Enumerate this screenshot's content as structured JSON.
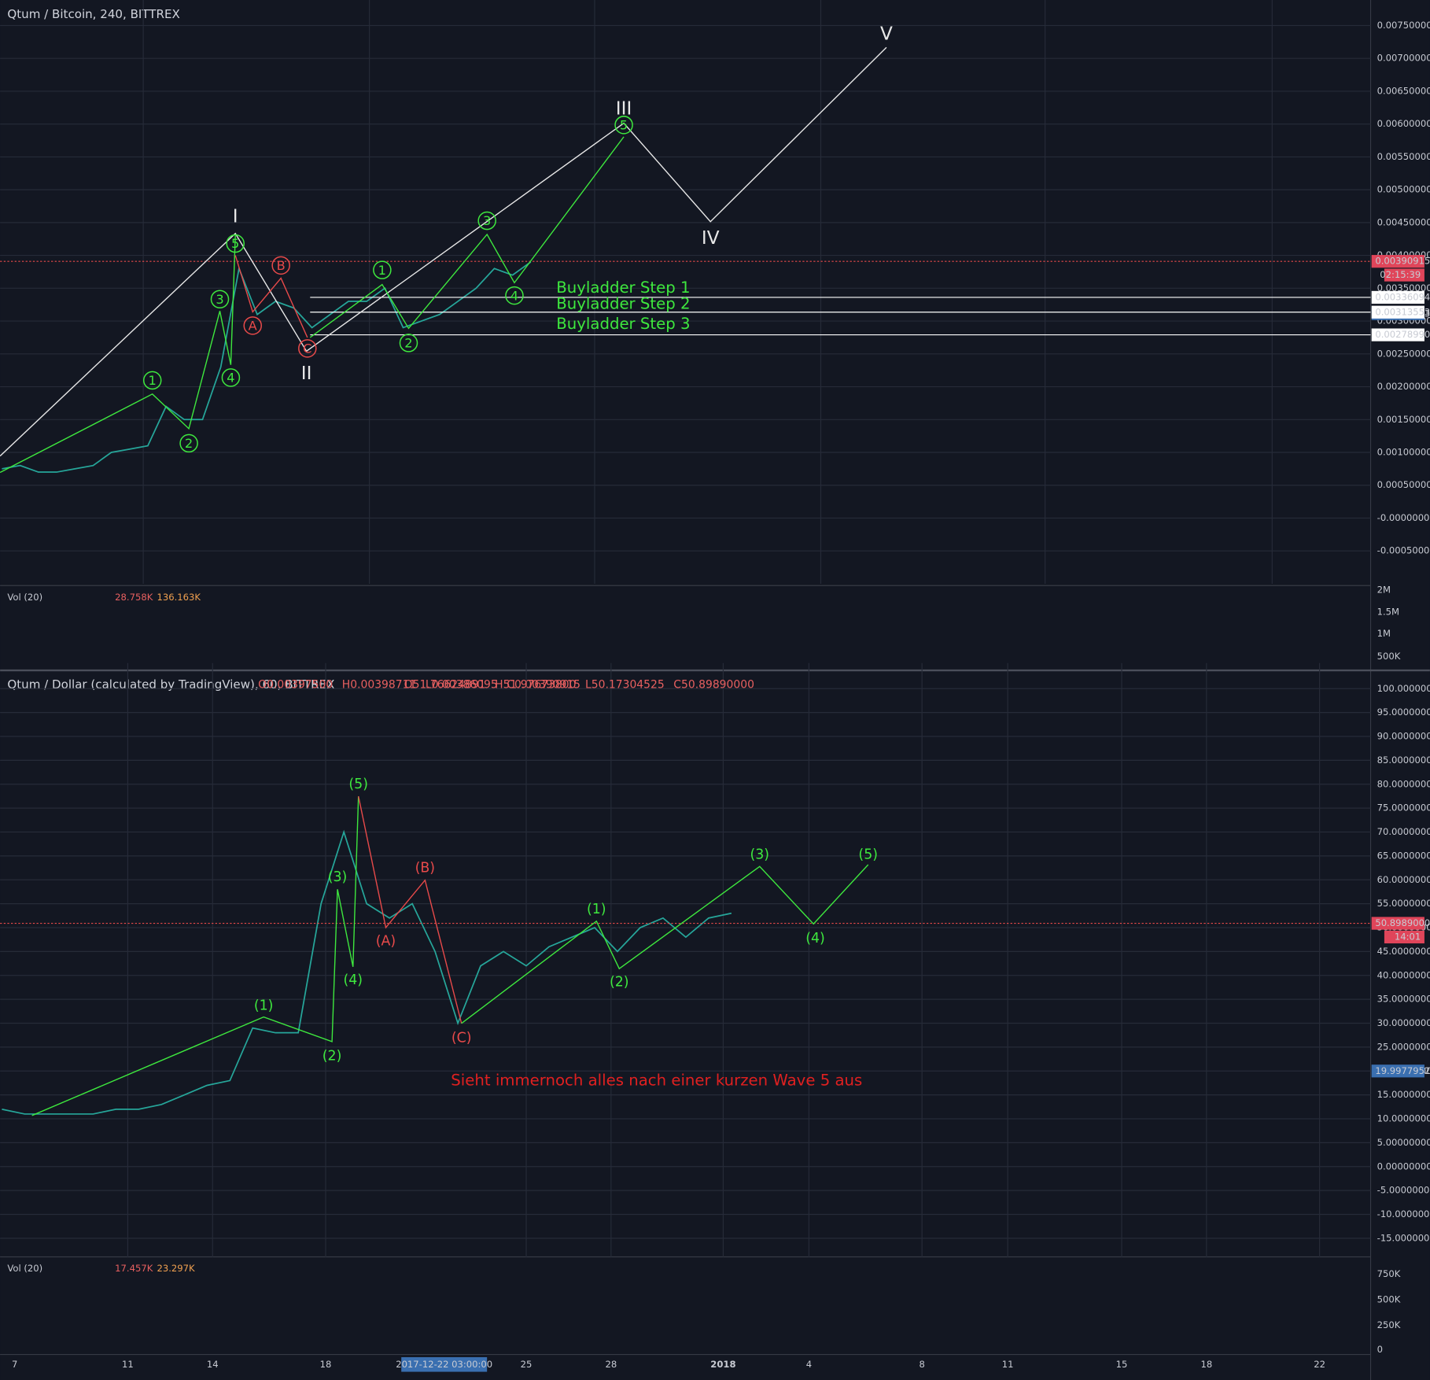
{
  "top": {
    "title": "Qtum / Bitcoin, 240, BITTREX",
    "ohlc": [
      "O0.00397500",
      "H0.00398711",
      "L0.00386095",
      "C0.00390915"
    ],
    "ylim": [
      -0.001,
      0.0075
    ],
    "yticks": [
      {
        "value": -0.0005,
        "label": "-0.00050000"
      },
      {
        "value": 0,
        "label": "-0.00000000"
      },
      {
        "value": 0.0005,
        "label": "0.00050000"
      },
      {
        "value": 0.001,
        "label": "0.00100000"
      },
      {
        "value": 0.0015,
        "label": "0.00150000"
      },
      {
        "value": 0.002,
        "label": "0.00200000"
      },
      {
        "value": 0.0025,
        "label": "0.00250000"
      },
      {
        "value": 0.003,
        "label": "0.00300000"
      },
      {
        "value": 0.0035,
        "label": "0.00350000"
      },
      {
        "value": 0.004,
        "label": "0.00400000"
      },
      {
        "value": 0.0045,
        "label": "0.00450000"
      },
      {
        "value": 0.005,
        "label": "0.00500000"
      },
      {
        "value": 0.0055,
        "label": "0.00550000"
      },
      {
        "value": 0.006,
        "label": "0.00600000"
      },
      {
        "value": 0.0065,
        "label": "0.00650000"
      },
      {
        "value": 0.007,
        "label": "0.00700000"
      },
      {
        "value": 0.0075,
        "label": "0.00750000"
      }
    ],
    "price": [
      0.00075,
      0.0008,
      0.0007,
      0.0007,
      0.00075,
      0.0008,
      0.001,
      0.00105,
      0.0011,
      0.0017,
      0.0015,
      0.0015,
      0.0023,
      0.0038,
      0.0031,
      0.0033,
      0.0032,
      0.0029,
      0.0031,
      0.0033,
      0.0033,
      0.0035,
      0.0029,
      0.003,
      0.0031,
      0.0033,
      0.0035,
      0.0038,
      0.0037,
      0.0039
    ],
    "last": {
      "value": 0.00390915,
      "label": "0.00390915"
    },
    "countdown": "02:15:39",
    "levels": [
      {
        "value": 0.00336094,
        "label": "0.00336094"
      },
      {
        "value": 0.00313553,
        "label": "0.00313553"
      },
      {
        "value": 0.0027899,
        "label": "0.00278990"
      }
    ],
    "marker": {
      "value": 0.00311163,
      "label": "0.00311163"
    },
    "buyladder": [
      "Buyladder Step 1",
      "Buyladder Step 2",
      "Buyladder Step 3"
    ],
    "waves_white": [
      "I",
      "II",
      "III",
      "IV",
      "V"
    ],
    "waves_green": [
      "1",
      "2",
      "3",
      "4",
      "5",
      "1",
      "2",
      "3",
      "4",
      "5"
    ],
    "waves_red": [
      "A",
      "B",
      "C"
    ],
    "vol": {
      "label": "Vol (20)",
      "values": [
        "28.758K",
        "136.163K"
      ],
      "ticks": [
        "2M",
        "1.5M",
        "1M",
        "500K"
      ]
    }
  },
  "bottom": {
    "title": "Qtum / Dollar (calculated by TradingView), 60, BITTREX",
    "ohlc": [
      "O51.76624891",
      "H51.97673800",
      "L50.17304525",
      "C50.89890000"
    ],
    "ylim": [
      -19,
      100
    ],
    "yticks": [
      {
        "value": -15,
        "label": "-15.00000000"
      },
      {
        "value": -10,
        "label": "-10.00000000"
      },
      {
        "value": -5,
        "label": "-5.00000000"
      },
      {
        "value": 0,
        "label": "0.00000000"
      },
      {
        "value": 5,
        "label": "5.00000000"
      },
      {
        "value": 10,
        "label": "10.00000000"
      },
      {
        "value": 15,
        "label": "15.00000000"
      },
      {
        "value": 20,
        "label": "20.00000000"
      },
      {
        "value": 25,
        "label": "25.00000000"
      },
      {
        "value": 30,
        "label": "30.00000000"
      },
      {
        "value": 35,
        "label": "35.00000000"
      },
      {
        "value": 40,
        "label": "40.00000000"
      },
      {
        "value": 45,
        "label": "45.00000000"
      },
      {
        "value": 50,
        "label": "50.00000000"
      },
      {
        "value": 55,
        "label": "55.00000000"
      },
      {
        "value": 60,
        "label": "60.00000000"
      },
      {
        "value": 65,
        "label": "65.00000000"
      },
      {
        "value": 70,
        "label": "70.00000000"
      },
      {
        "value": 75,
        "label": "75.00000000"
      },
      {
        "value": 80,
        "label": "80.00000000"
      },
      {
        "value": 85,
        "label": "85.00000000"
      },
      {
        "value": 90,
        "label": "90.00000000"
      },
      {
        "value": 95,
        "label": "95.00000000"
      },
      {
        "value": 100,
        "label": "100.00000000"
      }
    ],
    "price": [
      12,
      11,
      11,
      11,
      11,
      12,
      12,
      13,
      15,
      17,
      18,
      29,
      28,
      28,
      55,
      70,
      55,
      52,
      55,
      45,
      30,
      42,
      45,
      42,
      46,
      48,
      50,
      45,
      50,
      52,
      48,
      52,
      53
    ],
    "last": {
      "value": 50.8989,
      "label": "50.89890000"
    },
    "countdown": "14:01",
    "marker": {
      "value": 19.99779526,
      "label": "19.99779526"
    },
    "waves_green": [
      "(1)",
      "(2)",
      "(3)",
      "(4)",
      "(5)",
      "(1)",
      "(2)",
      "(3)",
      "(4)",
      "(5)"
    ],
    "waves_red": [
      "(A)",
      "(B)",
      "(C)"
    ],
    "note": "Sieht immernoch alles nach einer kurzen Wave 5 aus",
    "vol": {
      "label": "Vol (20)",
      "values": [
        "17.457K",
        "23.297K"
      ],
      "ticks": [
        "750K",
        "500K",
        "250K",
        "0"
      ]
    },
    "xticks": [
      "7",
      "11",
      "14",
      "18",
      "25",
      "28",
      "2018",
      "4",
      "8",
      "11",
      "15",
      "18",
      "22"
    ],
    "crosshair_date": "2017-12-22 03:00:00"
  }
}
